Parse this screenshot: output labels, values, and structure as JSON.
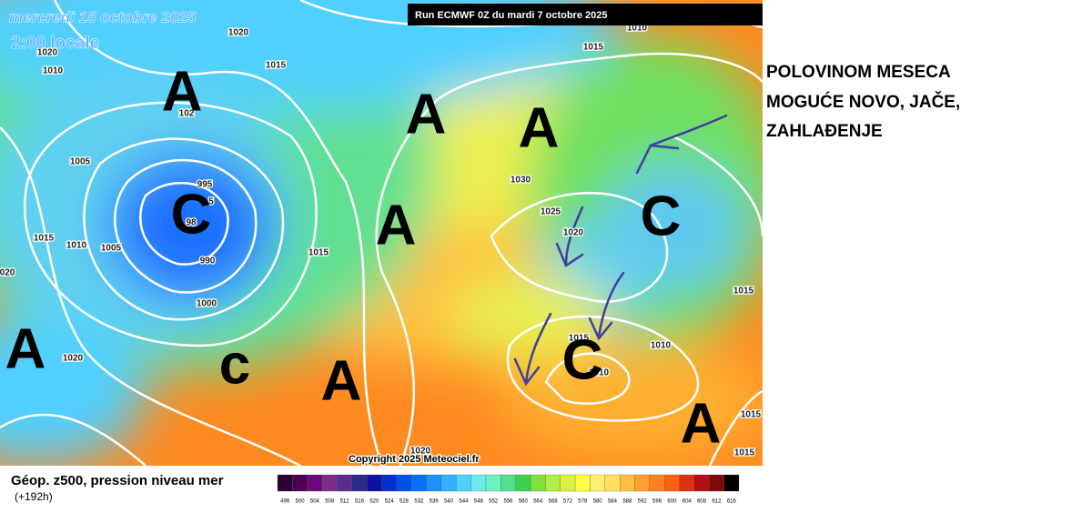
{
  "header": {
    "date": "mercredi 15 octobre 2025",
    "time": "2:00 locale",
    "run": "Run ECMWF 0Z du mardi 7 octobre 2025"
  },
  "map": {
    "copyright": "Copyright 2025 Meteociel.fr",
    "pressure_centers": [
      "A",
      "A",
      "A",
      "A",
      "C",
      "C",
      "A",
      "c",
      "A",
      "C",
      "A"
    ],
    "isobar_labels": [
      "1020",
      "1015",
      "1015",
      "1010",
      "1020",
      "102",
      "1005",
      "995",
      "5",
      "98",
      "990",
      "1000",
      "1005",
      "1010",
      "1015",
      "1015",
      "020",
      "1020",
      "1030",
      "1025",
      "1020",
      "1015",
      "1010",
      "1010",
      "1015",
      "1015",
      "1015",
      "1020",
      "1010"
    ]
  },
  "annotation": {
    "lines": [
      "POLOVINOM MESECA",
      "MOGUĆE NOVO, JAČE,",
      "ZAHLAĐENJE"
    ]
  },
  "legend": {
    "title": "Géop. z500, pression niveau mer",
    "lead": "(+192h)",
    "scale": [
      496,
      500,
      504,
      508,
      512,
      516,
      520,
      524,
      528,
      532,
      536,
      540,
      544,
      548,
      552,
      556,
      560,
      564,
      568,
      572,
      576,
      580,
      584,
      588,
      592,
      596,
      600,
      604,
      608,
      612,
      616
    ],
    "colors": [
      "#2a0030",
      "#4b0050",
      "#6a0a78",
      "#7a2e8a",
      "#5a2a90",
      "#2a2a8a",
      "#1010a0",
      "#0030d0",
      "#0050f0",
      "#0a70ff",
      "#1e90ff",
      "#30b0ff",
      "#50d0ff",
      "#70e8f0",
      "#70f0c0",
      "#50e090",
      "#40d050",
      "#80e040",
      "#b0f040",
      "#e0f040",
      "#ffff40",
      "#fff070",
      "#ffe060",
      "#ffc040",
      "#ffa030",
      "#ff8020",
      "#ff6010",
      "#e03010",
      "#b01010",
      "#800808",
      "#000000"
    ]
  }
}
